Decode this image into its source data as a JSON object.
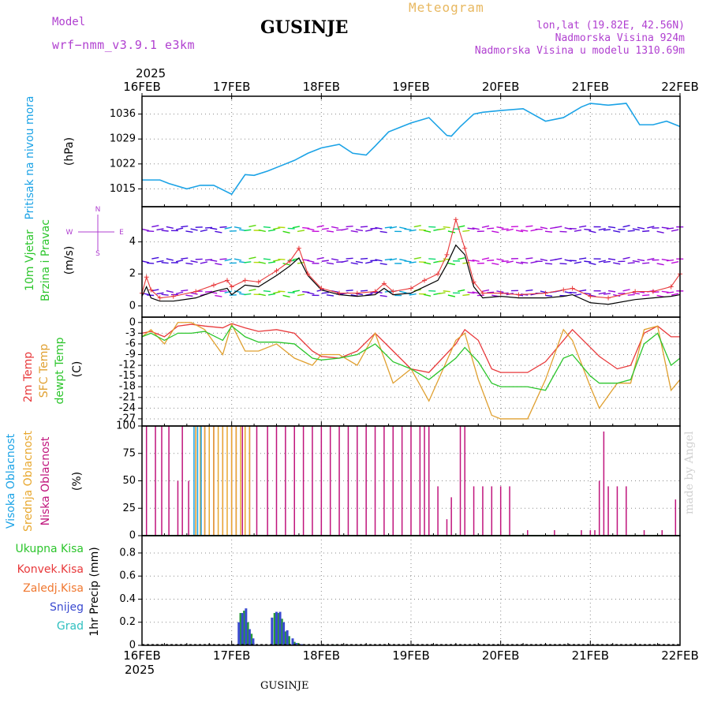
{
  "header": {
    "model_label": "Model",
    "model_name": "wrf−nmm_v3.9.1  e3km",
    "station": "GUSINJE",
    "meteogram_label": "Meteogram",
    "coords": "lon,lat (19.82E, 42.56N)",
    "altitude": "Nadmorska Visina 924m",
    "model_altitude": "Nadmorska Visina u modelu 1310.69m"
  },
  "footer": {
    "station": "GUSINJE",
    "year": "2025",
    "watermark": "made by Angel"
  },
  "colors": {
    "pressure": "#1ca3e6",
    "temp2m": "#e8393b",
    "sfc": "#e0a030",
    "dewpt": "#2cc52c",
    "low_cloud": "#c0147c",
    "mid_cloud": "#e8a830",
    "high_cloud": "#1ca3e6",
    "precip_total": "#2a9a3a",
    "snow": "#3a4ad0",
    "title_purple": "#b040d0"
  },
  "chart_data": [
    {
      "type": "line",
      "panel": "pressure",
      "title": "Pritisak na nivou mora",
      "ylabel": "(hPa)",
      "x_ticks": [
        "16FEB",
        "17FEB",
        "18FEB",
        "19FEB",
        "20FEB",
        "21FEB",
        "22FEB"
      ],
      "year": "2025",
      "ylim": [
        1010,
        1041
      ],
      "y_ticks": [
        1015,
        1022,
        1029,
        1036
      ],
      "x_days": [
        0,
        0.2,
        0.3,
        0.5,
        0.65,
        0.8,
        1.0,
        1.15,
        1.25,
        1.4,
        1.55,
        1.7,
        1.85,
        2.0,
        2.2,
        2.35,
        2.5,
        2.6,
        2.75,
        3.0,
        3.2,
        3.4,
        3.45,
        3.55,
        3.7,
        3.8,
        4.0,
        4.25,
        4.5,
        4.7,
        4.9,
        5.0,
        5.2,
        5.4,
        5.55,
        5.7,
        5.85,
        6.0
      ],
      "values": [
        1017.5,
        1017.5,
        1016.5,
        1015,
        1016,
        1016,
        1013.5,
        1019,
        1018.8,
        1020,
        1021.5,
        1023,
        1025,
        1026.5,
        1027.5,
        1025,
        1024.5,
        1027,
        1031,
        1033.5,
        1035,
        1030,
        1029.8,
        1032.5,
        1036,
        1036.5,
        1037,
        1037.5,
        1034,
        1035,
        1038,
        1039,
        1038.5,
        1039,
        1033,
        1033,
        1034,
        1032.5
      ],
      "series_name": "Pritisak"
    },
    {
      "type": "line",
      "panel": "wind",
      "title": "10m Vjetar Brzina i Pravac",
      "ylabel": "(m/s)",
      "compass_legend": [
        "N",
        "W",
        "E",
        "S"
      ],
      "ylim": [
        -0.7,
        6.2
      ],
      "y_ticks": [
        0,
        2,
        4
      ],
      "x_days": [
        0,
        0.05,
        0.1,
        0.2,
        0.35,
        0.6,
        0.8,
        0.95,
        1.0,
        1.15,
        1.3,
        1.5,
        1.65,
        1.75,
        1.85,
        2.0,
        2.2,
        2.4,
        2.6,
        2.7,
        2.8,
        3.0,
        3.15,
        3.3,
        3.4,
        3.5,
        3.6,
        3.7,
        3.8,
        4.0,
        4.2,
        4.5,
        4.7,
        4.8,
        5.0,
        5.2,
        5.5,
        5.7,
        5.9,
        6.0
      ],
      "speed_black": [
        0.6,
        1.2,
        0.5,
        0.3,
        0.3,
        0.5,
        0.9,
        1.1,
        0.7,
        1.3,
        1.2,
        1.9,
        2.5,
        3.0,
        1.9,
        1.0,
        0.7,
        0.6,
        0.7,
        1.1,
        0.7,
        0.8,
        1.2,
        1.6,
        2.6,
        3.8,
        3.2,
        1.2,
        0.5,
        0.6,
        0.5,
        0.5,
        0.6,
        0.7,
        0.2,
        0.1,
        0.4,
        0.5,
        0.6,
        0.7
      ],
      "speed_red": [
        0.8,
        1.8,
        1.0,
        0.5,
        0.6,
        0.9,
        1.3,
        1.6,
        1.2,
        1.6,
        1.5,
        2.2,
        2.8,
        3.6,
        2.0,
        1.1,
        0.8,
        0.8,
        0.9,
        1.4,
        0.9,
        1.1,
        1.6,
        2.0,
        3.2,
        5.4,
        3.6,
        1.5,
        0.8,
        0.8,
        0.7,
        0.8,
        1.0,
        1.1,
        0.6,
        0.5,
        0.9,
        0.9,
        1.2,
        2.0
      ],
      "arrow_rows_ms": [
        4.8,
        2.8,
        0.8
      ]
    },
    {
      "type": "line",
      "panel": "temperature",
      "title": "2m Temp / SFC Temp / dewpt Temp",
      "ylabel": "(C)",
      "ylim": [
        -29,
        1.5
      ],
      "y_ticks": [
        0,
        -3,
        -6,
        -9,
        -12,
        -15,
        -18,
        -21,
        -24,
        -27
      ],
      "x_days": [
        0,
        0.1,
        0.25,
        0.4,
        0.55,
        0.7,
        0.9,
        1.0,
        1.15,
        1.3,
        1.5,
        1.7,
        1.9,
        2.0,
        2.2,
        2.4,
        2.6,
        2.8,
        3.0,
        3.2,
        3.5,
        3.6,
        3.75,
        3.9,
        4.0,
        4.3,
        4.5,
        4.7,
        4.8,
        5.0,
        5.1,
        5.3,
        5.45,
        5.6,
        5.75,
        5.9,
        6.0
      ],
      "series": [
        {
          "name": "2m Temp",
          "values": [
            -3,
            -2.5,
            -4,
            -1,
            -0.5,
            -1,
            -1.5,
            -0.3,
            -1.5,
            -2.5,
            -2,
            -3,
            -8,
            -9.5,
            -10,
            -8,
            -3,
            -8,
            -13,
            -14,
            -6,
            -2,
            -5,
            -13,
            -14,
            -14,
            -11,
            -5,
            -2,
            -7,
            -9.5,
            -13,
            -12,
            -3,
            -1,
            -4,
            -4
          ]
        },
        {
          "name": "SFC Temp",
          "values": [
            -4,
            -2,
            -6,
            0,
            0,
            -2,
            -9,
            -0.5,
            -8,
            -8,
            -6,
            -10,
            -12,
            -9,
            -9,
            -12,
            -3,
            -17,
            -13,
            -22,
            -5,
            -3,
            -16,
            -26,
            -27,
            -27,
            -16,
            -2,
            -5,
            -18,
            -24,
            -17,
            -17,
            -2,
            -1,
            -19,
            -16
          ]
        },
        {
          "name": "dewpt Temp",
          "values": [
            -4,
            -3,
            -5,
            -3,
            -3,
            -2.5,
            -5,
            -1,
            -4,
            -5.5,
            -5.5,
            -6,
            -10,
            -10.5,
            -10,
            -9,
            -6,
            -11,
            -13,
            -16,
            -10,
            -7,
            -11,
            -17,
            -18,
            -18,
            -19,
            -10,
            -9,
            -15,
            -17,
            -17,
            -16,
            -6,
            -3,
            -12,
            -10
          ]
        }
      ]
    },
    {
      "type": "bar",
      "panel": "clouds",
      "title": "Visoka Oblacnost / Srednja Oblacnost / Niska Oblacnost",
      "ylabel": "(%)",
      "ylim": [
        0,
        100
      ],
      "y_ticks": [
        0,
        25,
        50,
        75,
        100
      ],
      "low": {
        "x_days": [
          0.05,
          0.15,
          0.22,
          0.3,
          0.4,
          0.45,
          0.52,
          0.6,
          0.7,
          0.8,
          0.9,
          1.0,
          1.05,
          1.12,
          1.2,
          1.28,
          1.4,
          1.5,
          1.6,
          1.7,
          1.8,
          1.9,
          2.0,
          2.1,
          2.2,
          2.3,
          2.4,
          2.5,
          2.6,
          2.7,
          2.8,
          2.9,
          3.0,
          3.1,
          3.15,
          3.2,
          3.3,
          3.4,
          3.45,
          3.55,
          3.6,
          3.7,
          3.8,
          3.9,
          4.0,
          4.1,
          4.3,
          4.6,
          4.9,
          5.0,
          5.05,
          5.1,
          5.15,
          5.2,
          5.3,
          5.4,
          5.6,
          5.8,
          5.95
        ],
        "values": [
          100,
          100,
          100,
          100,
          50,
          100,
          50,
          100,
          100,
          100,
          100,
          100,
          100,
          100,
          100,
          100,
          100,
          100,
          100,
          100,
          100,
          100,
          100,
          100,
          100,
          100,
          100,
          100,
          100,
          100,
          100,
          100,
          100,
          100,
          100,
          100,
          45,
          15,
          35,
          100,
          100,
          45,
          45,
          45,
          45,
          45,
          5,
          5,
          5,
          5,
          5,
          50,
          95,
          45,
          45,
          45,
          5,
          5,
          33
        ]
      },
      "mid": {
        "x_days": [
          0.6,
          0.65,
          0.7,
          0.75,
          0.8,
          0.85,
          0.9,
          0.95,
          1.0,
          1.05,
          1.1,
          1.15,
          1.2
        ],
        "values": [
          100,
          100,
          100,
          100,
          100,
          100,
          100,
          100,
          100,
          100,
          100,
          100,
          100
        ]
      },
      "high": {
        "x_days": [
          0.58,
          0.62,
          0.66
        ],
        "values": [
          100,
          100,
          100
        ]
      }
    },
    {
      "type": "bar",
      "panel": "precipitation",
      "title": "1hr Precip",
      "ylabel": "(mm)",
      "legend": [
        "Ukupna Kisa",
        "Konvek.Kisa",
        "Zaledj.Kisa",
        "Snijeg",
        "Grad"
      ],
      "ylim": [
        0,
        0.95
      ],
      "y_ticks": [
        0,
        0.2,
        0.4,
        0.6,
        0.8
      ],
      "snow": {
        "x_days": [
          1.08,
          1.12,
          1.16,
          1.2,
          1.24,
          1.45,
          1.5,
          1.54,
          1.58,
          1.62,
          1.68,
          1.72,
          1.78
        ],
        "values": [
          0.2,
          0.28,
          0.32,
          0.14,
          0.06,
          0.24,
          0.29,
          0.29,
          0.2,
          0.13,
          0.06,
          0.02,
          0.01
        ]
      },
      "total": {
        "x_days": [
          1.1,
          1.14,
          1.18,
          1.22,
          1.48,
          1.52,
          1.56,
          1.6,
          1.64,
          1.7,
          1.74,
          1.8,
          1.85,
          2.15,
          5.1
        ],
        "values": [
          0.28,
          0.3,
          0.2,
          0.1,
          0.28,
          0.28,
          0.23,
          0.12,
          0.08,
          0.03,
          0.02,
          0.01,
          0.005,
          0.005,
          0.005
        ]
      }
    }
  ]
}
